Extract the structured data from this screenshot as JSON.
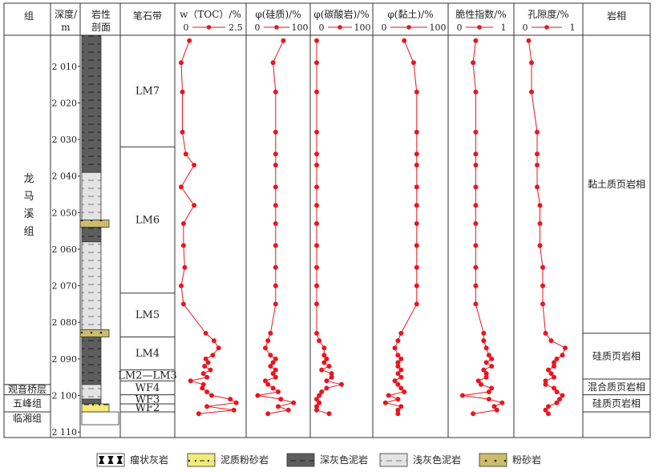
{
  "headers": {
    "group": "组",
    "depth": "深度/",
    "depth_unit": "m",
    "litho": "岩性",
    "litho2": "剖面",
    "grapto": "笔石带",
    "facies": "岩相"
  },
  "groups": [
    {
      "label": "龙\n马\n溪\n组",
      "top": 2001.5,
      "bottom": 2097
    },
    {
      "label": "观音桥层",
      "top": 2097,
      "bottom": 2099.8
    },
    {
      "label": "五峰组",
      "top": 2099.8,
      "bottom": 2104.5
    },
    {
      "label": "临湘组",
      "top": 2104.5,
      "bottom": 2108
    }
  ],
  "depth_ticks": [
    "2 010",
    "2 020",
    "2 030",
    "2 040",
    "2 050",
    "2 060",
    "2 070",
    "2 080",
    "2 090",
    "2 100",
    "2 110"
  ],
  "grapto_zones": [
    {
      "label": "LM7",
      "top": 2001.5,
      "bottom": 2032
    },
    {
      "label": "LM6",
      "top": 2032,
      "bottom": 2072
    },
    {
      "label": "LM5",
      "top": 2072,
      "bottom": 2084
    },
    {
      "label": "LM4",
      "top": 2084,
      "bottom": 2093
    },
    {
      "label": "LM2—LM3",
      "top": 2093,
      "bottom": 2096
    },
    {
      "label": "WF4",
      "top": 2096,
      "bottom": 2099.8
    },
    {
      "label": "WF3",
      "top": 2099.8,
      "bottom": 2102.3
    },
    {
      "label": "WF2",
      "top": 2102.3,
      "bottom": 2104.5
    }
  ],
  "facies_zones": [
    {
      "label": "黏土质页岩相",
      "top": 2001.5,
      "bottom": 2083
    },
    {
      "label": "硅质页岩相",
      "top": 2083,
      "bottom": 2095.5
    },
    {
      "label": "混合质页岩相",
      "top": 2095.5,
      "bottom": 2099.8
    },
    {
      "label": "硅质页岩相",
      "top": 2099.8,
      "bottom": 2104.5
    }
  ],
  "lithology": [
    {
      "type": "dark_mudstone",
      "top": 2001.5,
      "bottom": 2039
    },
    {
      "type": "light_mudstone",
      "top": 2039,
      "bottom": 2052
    },
    {
      "type": "siltstone",
      "top": 2052,
      "bottom": 2054
    },
    {
      "type": "dark_mudstone",
      "top": 2054,
      "bottom": 2058
    },
    {
      "type": "light_mudstone",
      "top": 2058,
      "bottom": 2082
    },
    {
      "type": "siltstone",
      "top": 2082,
      "bottom": 2084
    },
    {
      "type": "dark_mudstone",
      "top": 2084,
      "bottom": 2097
    },
    {
      "type": "light_mudstone",
      "top": 2097,
      "bottom": 2101
    },
    {
      "type": "dark_mudstone",
      "top": 2101,
      "bottom": 2102.3
    },
    {
      "type": "silty_mudstone",
      "top": 2102.3,
      "bottom": 2104.5
    },
    {
      "type": "nodular_limestone",
      "top": 2104.5,
      "bottom": 2108
    }
  ],
  "legend": [
    {
      "type": "nodular_limestone",
      "label": "瘤状灰岩"
    },
    {
      "type": "silty_mudstone",
      "label": "泥质粉砂岩"
    },
    {
      "type": "dark_mudstone",
      "label": "深灰色泥岩"
    },
    {
      "type": "light_mudstone",
      "label": "浅灰色泥岩"
    },
    {
      "type": "siltstone",
      "label": "粉砂岩"
    }
  ],
  "colors": {
    "series": "#e8161f",
    "dark_mudstone": "#5d5d5d",
    "light_mudstone": "#e3e3e3",
    "siltstone": "#cbbd6c",
    "silty_mudstone": "#f3ea7a",
    "nodular_limestone": "#ffffff"
  },
  "chart_data": {
    "type": "line",
    "y_axis": {
      "label": "深度/m",
      "range": [
        2001.5,
        2111.5
      ],
      "inverted": true
    },
    "depth": [
      2003,
      2009,
      2017,
      2028,
      2034,
      2037,
      2043,
      2048,
      2053,
      2059,
      2065,
      2070,
      2075,
      2083,
      2085,
      2087,
      2089,
      2090,
      2091,
      2092,
      2093,
      2094,
      2095,
      2096,
      2097,
      2098,
      2099,
      2100,
      2101,
      2102,
      2103,
      2104,
      2105
    ],
    "series": [
      {
        "title": "w（TOC）/%",
        "range": [
          0,
          2.5
        ],
        "ticks": [
          "0",
          "2.5"
        ],
        "values": [
          0.35,
          0.0,
          0.05,
          0.05,
          0.2,
          0.55,
          0.0,
          0.55,
          0.1,
          0.1,
          0.15,
          0.0,
          0.1,
          1.05,
          1.4,
          1.6,
          1.35,
          1.05,
          1.15,
          1.0,
          1.25,
          0.95,
          1.1,
          0.4,
          0.95,
          0.9,
          1.1,
          1.3,
          2.1,
          2.35,
          1.1,
          2.25,
          0.75
        ]
      },
      {
        "title": "φ(硅质)/%",
        "range": [
          0,
          100
        ],
        "ticks": [
          "0",
          "100"
        ],
        "values": [
          60,
          40,
          45,
          45,
          45,
          45,
          45,
          45,
          45,
          45,
          45,
          45,
          45,
          35,
          30,
          25,
          35,
          45,
          40,
          35,
          45,
          40,
          45,
          25,
          30,
          40,
          50,
          10,
          55,
          80,
          50,
          70,
          30
        ]
      },
      {
        "title": "φ(碳酸岩)/%",
        "range": [
          0,
          100
        ],
        "ticks": [
          "0",
          "100"
        ],
        "values": [
          0,
          0,
          0,
          0,
          0,
          0,
          0,
          0,
          0,
          0,
          0,
          0,
          0,
          0,
          5,
          15,
          15,
          20,
          15,
          25,
          10,
          30,
          30,
          20,
          50,
          20,
          10,
          5,
          0,
          5,
          0,
          0,
          25
        ]
      },
      {
        "title": "φ(黏土)/%",
        "range": [
          0,
          100
        ],
        "ticks": [
          "0",
          "100"
        ],
        "values": [
          40,
          55,
          60,
          60,
          60,
          60,
          60,
          60,
          60,
          60,
          60,
          60,
          60,
          35,
          30,
          25,
          30,
          35,
          30,
          30,
          35,
          30,
          35,
          25,
          30,
          35,
          40,
          15,
          30,
          10,
          35,
          30,
          30
        ]
      },
      {
        "title": "脆性指数/%",
        "range": [
          0,
          1
        ],
        "ticks": [
          "0",
          "1"
        ],
        "values": [
          0.4,
          0.35,
          0.4,
          0.4,
          0.4,
          0.4,
          0.4,
          0.4,
          0.4,
          0.4,
          0.4,
          0.4,
          0.4,
          0.55,
          0.55,
          0.6,
          0.65,
          0.7,
          0.6,
          0.7,
          0.55,
          0.6,
          0.6,
          0.45,
          0.5,
          0.7,
          0.65,
          0.15,
          0.65,
          0.9,
          0.75,
          0.8,
          0.35
        ]
      },
      {
        "title": "孔隙度/%",
        "range": [
          0,
          1
        ],
        "ticks": [
          "0",
          "1"
        ],
        "values": [
          0.15,
          0.2,
          0.2,
          0.3,
          0.3,
          0.3,
          0.3,
          0.35,
          0.35,
          0.35,
          0.4,
          0.4,
          0.4,
          0.45,
          0.55,
          0.8,
          0.75,
          0.65,
          0.6,
          0.6,
          0.5,
          0.55,
          0.6,
          0.45,
          0.45,
          0.6,
          0.65,
          0.75,
          0.7,
          0.65,
          0.5,
          0.45,
          0.5
        ]
      }
    ]
  }
}
